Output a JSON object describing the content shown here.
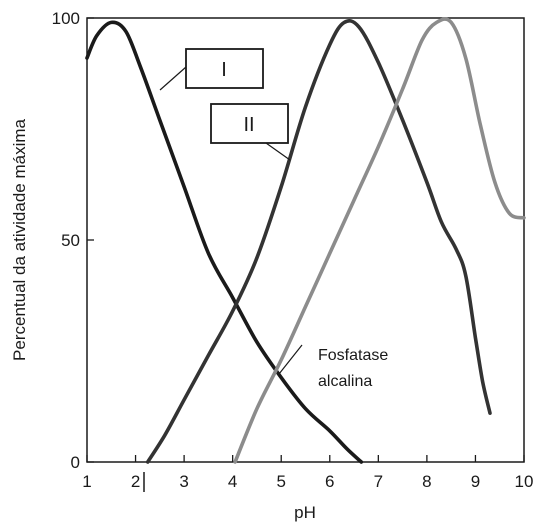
{
  "chart_data": {
    "type": "line",
    "title": "",
    "xlabel": "pH",
    "ylabel": "Percentual da atividade máxima",
    "xlim": [
      1,
      10
    ],
    "ylim": [
      0,
      100
    ],
    "x_ticks": [
      "1",
      "2",
      "3",
      "4",
      "5",
      "6",
      "7",
      "8",
      "9",
      "10"
    ],
    "y_ticks": [
      "0",
      "50",
      "100"
    ],
    "grid": false,
    "legend": "none",
    "series": [
      {
        "name": "I",
        "color": "#1a1a1a",
        "points": [
          [
            1.0,
            91
          ],
          [
            1.2,
            96
          ],
          [
            1.5,
            99
          ],
          [
            1.8,
            97
          ],
          [
            2.1,
            89
          ],
          [
            2.5,
            77
          ],
          [
            3.0,
            62
          ],
          [
            3.5,
            47
          ],
          [
            4.0,
            37
          ],
          [
            4.5,
            27
          ],
          [
            5.0,
            19
          ],
          [
            5.5,
            12
          ],
          [
            6.0,
            7
          ],
          [
            6.35,
            3
          ],
          [
            6.65,
            0
          ]
        ]
      },
      {
        "name": "II",
        "color": "#333333",
        "points": [
          [
            2.25,
            0
          ],
          [
            2.6,
            6
          ],
          [
            3.0,
            14
          ],
          [
            3.5,
            24
          ],
          [
            4.0,
            34
          ],
          [
            4.5,
            46
          ],
          [
            5.0,
            62
          ],
          [
            5.5,
            80
          ],
          [
            6.0,
            94
          ],
          [
            6.3,
            99
          ],
          [
            6.6,
            98
          ],
          [
            7.0,
            90
          ],
          [
            7.5,
            77
          ],
          [
            8.0,
            63
          ],
          [
            8.3,
            54
          ],
          [
            8.6,
            48
          ],
          [
            8.8,
            42
          ],
          [
            9.0,
            28
          ],
          [
            9.15,
            18
          ],
          [
            9.3,
            11
          ]
        ]
      },
      {
        "name": "Fosfatase alcalina",
        "color": "#8c8c8c",
        "points": [
          [
            4.05,
            0
          ],
          [
            4.5,
            12
          ],
          [
            5.0,
            23
          ],
          [
            5.5,
            35
          ],
          [
            6.0,
            47
          ],
          [
            6.5,
            59
          ],
          [
            7.0,
            71
          ],
          [
            7.5,
            84
          ],
          [
            7.9,
            95
          ],
          [
            8.2,
            99
          ],
          [
            8.5,
            99
          ],
          [
            8.8,
            91
          ],
          [
            9.1,
            76
          ],
          [
            9.4,
            63
          ],
          [
            9.7,
            56
          ],
          [
            10.0,
            55
          ]
        ]
      }
    ],
    "annotations": {
      "box_I": "I",
      "box_II": "II",
      "label_line1": "Fosfatase",
      "label_line2": "alcalina"
    }
  }
}
